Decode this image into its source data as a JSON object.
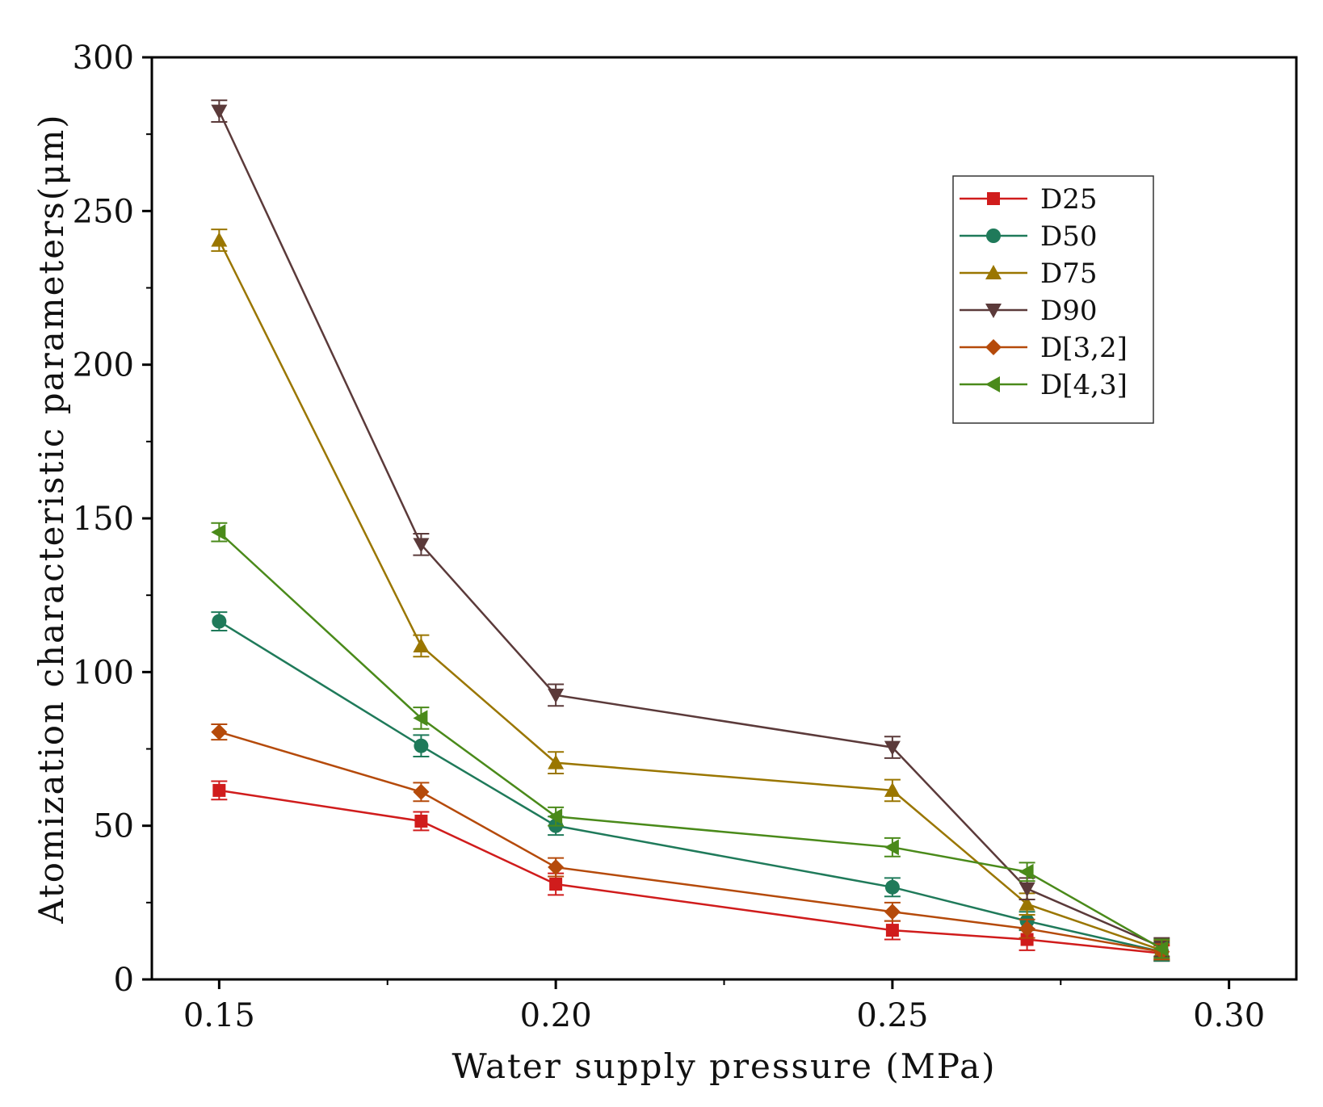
{
  "chart_data": {
    "type": "line",
    "title": "",
    "xlabel": "Water supply pressure (MPa)",
    "ylabel": "Atomization characteristic parameters(μm)",
    "xlim": [
      0.14,
      0.31
    ],
    "ylim": [
      0,
      300
    ],
    "xticks": [
      0.15,
      0.2,
      0.25,
      0.3
    ],
    "xtick_labels": [
      "0.15",
      "0.20",
      "0.25",
      "0.30"
    ],
    "yticks": [
      0,
      50,
      100,
      150,
      200,
      250,
      300
    ],
    "ytick_labels": [
      "0",
      "50",
      "100",
      "150",
      "200",
      "250",
      "300"
    ],
    "grid": false,
    "legend_position": "top-right",
    "x": [
      0.15,
      0.18,
      0.2,
      0.25,
      0.27,
      0.29
    ],
    "series": [
      {
        "name": "D25",
        "marker": "square",
        "color": "#d01c1c",
        "values": [
          61.5,
          51.5,
          31,
          16,
          13,
          8.5
        ],
        "errors": [
          3,
          3,
          3.5,
          3,
          3.5,
          2.5
        ]
      },
      {
        "name": "D50",
        "marker": "circle",
        "color": "#1f7a5a",
        "values": [
          116.5,
          76,
          50,
          30,
          19,
          9
        ],
        "errors": [
          3,
          3.5,
          3,
          3,
          3,
          3
        ]
      },
      {
        "name": "D75",
        "marker": "triangle-up",
        "color": "#9a7600",
        "values": [
          240.5,
          108.5,
          70.5,
          61.5,
          24.5,
          9.5
        ],
        "errors": [
          3.5,
          3.5,
          3.5,
          3.5,
          3.5,
          3
        ]
      },
      {
        "name": "D90",
        "marker": "triangle-down",
        "color": "#5b3a3a",
        "values": [
          282.5,
          141.5,
          92.5,
          75.5,
          29.5,
          10.5
        ],
        "errors": [
          3.5,
          3.5,
          3.5,
          3.5,
          3.5,
          3
        ]
      },
      {
        "name": "D[3,2]",
        "marker": "diamond",
        "color": "#b54a0a",
        "values": [
          80.5,
          61,
          36.5,
          22,
          16.5,
          9
        ],
        "errors": [
          2.5,
          3,
          3,
          3,
          3,
          2.5
        ]
      },
      {
        "name": "D[4,3]",
        "marker": "triangle-left",
        "color": "#4a8a1a",
        "values": [
          145.5,
          85,
          53,
          43,
          35,
          10
        ],
        "errors": [
          3,
          3.5,
          3,
          3,
          3,
          3
        ]
      }
    ]
  }
}
